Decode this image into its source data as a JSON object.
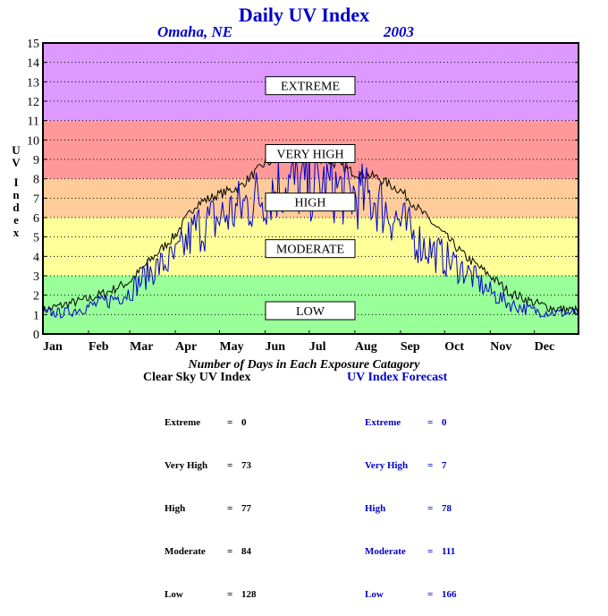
{
  "header": {
    "title": "Daily UV Index",
    "location": "Omaha, NE",
    "year": "2003"
  },
  "chart_data": {
    "type": "line",
    "title": "Daily UV Index",
    "ylabel": "UV Index",
    "ylim": [
      0,
      15
    ],
    "yticks": [
      0,
      1,
      2,
      3,
      4,
      5,
      6,
      7,
      8,
      9,
      10,
      11,
      12,
      13,
      14,
      15
    ],
    "xlim": [
      1,
      365
    ],
    "xticks": [
      {
        "label": "Jan",
        "day": 1
      },
      {
        "label": "Feb",
        "day": 32
      },
      {
        "label": "Mar",
        "day": 60
      },
      {
        "label": "Apr",
        "day": 91
      },
      {
        "label": "May",
        "day": 121
      },
      {
        "label": "Jun",
        "day": 152
      },
      {
        "label": "Jul",
        "day": 182
      },
      {
        "label": "Aug",
        "day": 213
      },
      {
        "label": "Sep",
        "day": 244
      },
      {
        "label": "Oct",
        "day": 274
      },
      {
        "label": "Nov",
        "day": 305
      },
      {
        "label": "Dec",
        "day": 335
      }
    ],
    "grid": true,
    "bands": [
      {
        "label": "LOW",
        "from": 0,
        "to": 3,
        "color": "#99ff99",
        "label_y": 1.2
      },
      {
        "label": "MODERATE",
        "from": 3,
        "to": 6,
        "color": "#ffff99",
        "label_y": 4.4
      },
      {
        "label": "HIGH",
        "from": 6,
        "to": 8,
        "color": "#ffcc99",
        "label_y": 6.8
      },
      {
        "label": "VERY HIGH",
        "from": 8,
        "to": 11,
        "color": "#ff9999",
        "label_y": 9.3
      },
      {
        "label": "EXTREME",
        "from": 11,
        "to": 15,
        "color": "#dd99ff",
        "label_y": 12.8
      }
    ],
    "series": [
      {
        "name": "Clear Sky UV Index",
        "color": "#000000",
        "x": [
          1,
          15,
          32,
          46,
          60,
          74,
          91,
          105,
          121,
          135,
          152,
          166,
          182,
          196,
          213,
          227,
          244,
          258,
          274,
          288,
          305,
          319,
          335,
          349,
          365
        ],
        "y": [
          1.2,
          1.5,
          1.8,
          2.2,
          2.7,
          3.8,
          5.1,
          6.7,
          7.2,
          7.6,
          8.8,
          9.0,
          9.2,
          8.9,
          8.3,
          8.1,
          7.4,
          6.3,
          5.1,
          4.0,
          3.0,
          2.1,
          1.6,
          1.3,
          1.2
        ]
      },
      {
        "name": "UV Index Forecast",
        "color": "#0000cc",
        "x": [
          1,
          15,
          32,
          46,
          60,
          74,
          91,
          105,
          121,
          135,
          152,
          166,
          182,
          196,
          213,
          227,
          244,
          258,
          274,
          288,
          305,
          319,
          335,
          349,
          365
        ],
        "y": [
          1.0,
          1.0,
          1.3,
          1.6,
          2.0,
          3.0,
          3.6,
          5.0,
          5.5,
          6.0,
          6.7,
          7.2,
          7.0,
          7.0,
          6.6,
          6.4,
          5.3,
          4.3,
          3.6,
          3.0,
          2.0,
          1.4,
          1.1,
          1.0,
          1.0
        ]
      }
    ]
  },
  "footer": {
    "heading": "Number of Days in Each Exposure Catagory",
    "clear_sky": {
      "title": "Clear Sky UV Index",
      "rows": [
        {
          "label": "Extreme",
          "value": "0"
        },
        {
          "label": "Very High",
          "value": "73"
        },
        {
          "label": "High",
          "value": "77"
        },
        {
          "label": "Moderate",
          "value": "84"
        },
        {
          "label": "Low",
          "value": "128"
        }
      ]
    },
    "forecast": {
      "title": "UV Index Forecast",
      "rows": [
        {
          "label": "Extreme",
          "value": "0"
        },
        {
          "label": "Very High",
          "value": "7"
        },
        {
          "label": "High",
          "value": "78"
        },
        {
          "label": "Moderate",
          "value": "111"
        },
        {
          "label": "Low",
          "value": "166"
        }
      ]
    }
  }
}
